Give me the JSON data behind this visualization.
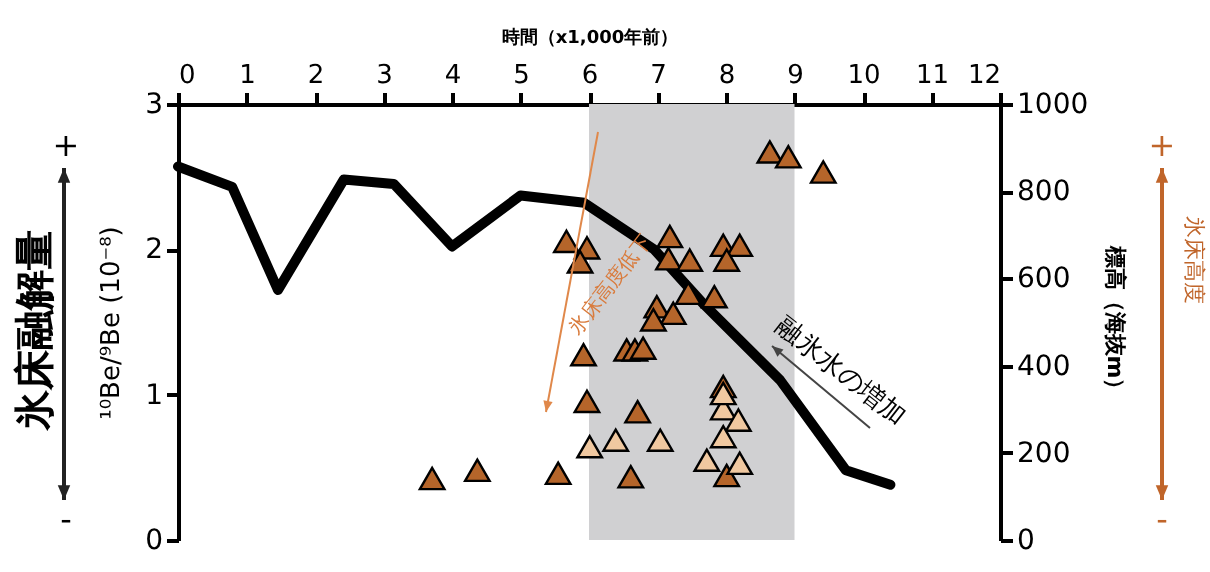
{
  "chart_data": {
    "type": "scatter",
    "xlabel": "時間（x1,000年前）",
    "ylabel": "¹⁰Be/⁹Be (10⁻⁸)",
    "y2label": "標高（海抜m）",
    "xlim": [
      0,
      12
    ],
    "xticks": [
      0,
      1,
      2,
      3,
      4,
      5,
      6,
      7,
      8,
      9,
      10,
      11,
      12
    ],
    "ylim": [
      0,
      3
    ],
    "yticks": [
      0,
      1,
      2,
      3
    ],
    "y2lim": [
      0,
      1000
    ],
    "y2ticks": [
      0,
      200,
      400,
      600,
      800,
      1000
    ],
    "grid": false,
    "marker": "triangle",
    "bands": [
      {
        "axis": "x",
        "from": 6,
        "to": 9,
        "color": "#d0d0d2"
      }
    ],
    "series": [
      {
        "type": "line",
        "color": "#000000",
        "line_style": "solid",
        "marker": "none",
        "axis": "y",
        "x": [
          0,
          0.79,
          1.46,
          2.42,
          3.15,
          4.0,
          5.0,
          5.93,
          6.95,
          7.68,
          8.79,
          9.75,
          10.4
        ],
        "values": [
          2.57,
          2.43,
          1.72,
          2.48,
          2.45,
          2.02,
          2.37,
          2.32,
          2.0,
          1.62,
          1.1,
          0.48,
          0.38
        ]
      },
      {
        "color": "#b5652a",
        "axis": "y2",
        "x": [
          5.67,
          5.97,
          5.87,
          7.18,
          7.16,
          7.47,
          7.96,
          8.2,
          8.01,
          7.45,
          7.83,
          6.99,
          7.23,
          6.94,
          5.92,
          6.55,
          6.67,
          6.79,
          5.97,
          6.71,
          3.71,
          4.37,
          5.55,
          6.61,
          8.01,
          7.96,
          8.64,
          8.91,
          9.42
        ],
        "values": [
          685,
          670,
          638,
          696,
          645,
          642,
          676,
          676,
          642,
          566,
          558,
          535,
          520,
          505,
          425,
          436,
          436,
          440,
          318,
          294,
          141,
          160,
          153,
          145,
          148,
          352,
          890,
          879,
          844
        ]
      },
      {
        "color": "#f0c8a0",
        "axis": "y2",
        "x": [
          6.01,
          6.39,
          7.04,
          7.96,
          8.18,
          7.96,
          7.72,
          8.2,
          7.96
        ],
        "values": [
          214,
          229,
          229,
          301,
          275,
          237,
          183,
          176,
          336
        ]
      }
    ],
    "annotations": [
      "氷床高度低下",
      "融氷水の増加",
      "氷床融解量",
      "+",
      "-",
      "氷床高度",
      "+",
      "-"
    ]
  }
}
